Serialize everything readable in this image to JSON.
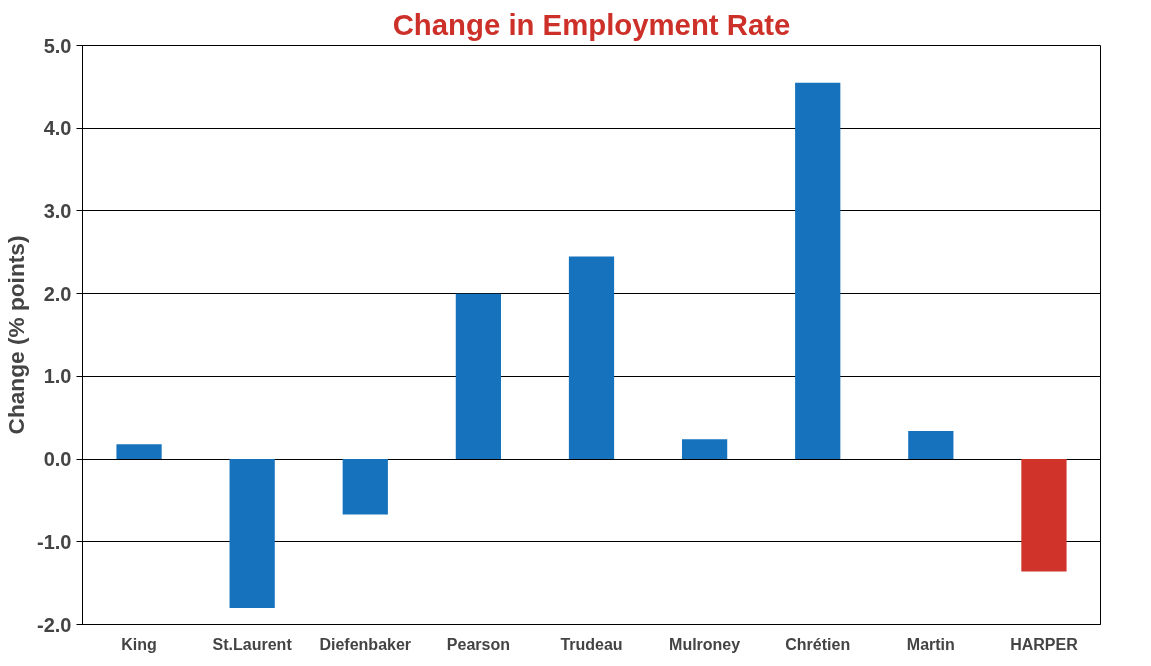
{
  "chart_data": {
    "type": "bar",
    "title": "Change in Employment Rate",
    "ylabel": "Change (% points)",
    "categories": [
      "King",
      "St.Laurent",
      "Diefenbaker",
      "Pearson",
      "Trudeau",
      "Mulroney",
      "Chrétien",
      "Martin",
      "HARPER"
    ],
    "values": [
      0.18,
      -1.8,
      -0.67,
      2.0,
      2.45,
      0.24,
      4.55,
      0.34,
      -1.36
    ],
    "colors": [
      "#1772bd",
      "#1772bd",
      "#1772bd",
      "#1772bd",
      "#1772bd",
      "#1772bd",
      "#1772bd",
      "#1772bd",
      "#cf3329"
    ],
    "ylim": [
      -2,
      5
    ],
    "yticks": [
      {
        "value": -2,
        "label": "-2.0"
      },
      {
        "value": -1,
        "label": "-1.0"
      },
      {
        "value": 0,
        "label": "0.0"
      },
      {
        "value": 1,
        "label": "1.0"
      },
      {
        "value": 2,
        "label": "2.0"
      },
      {
        "value": 3,
        "label": "3.0"
      },
      {
        "value": 4,
        "label": "4.0"
      },
      {
        "value": 5,
        "label": "5.0"
      }
    ],
    "grid": "y"
  }
}
